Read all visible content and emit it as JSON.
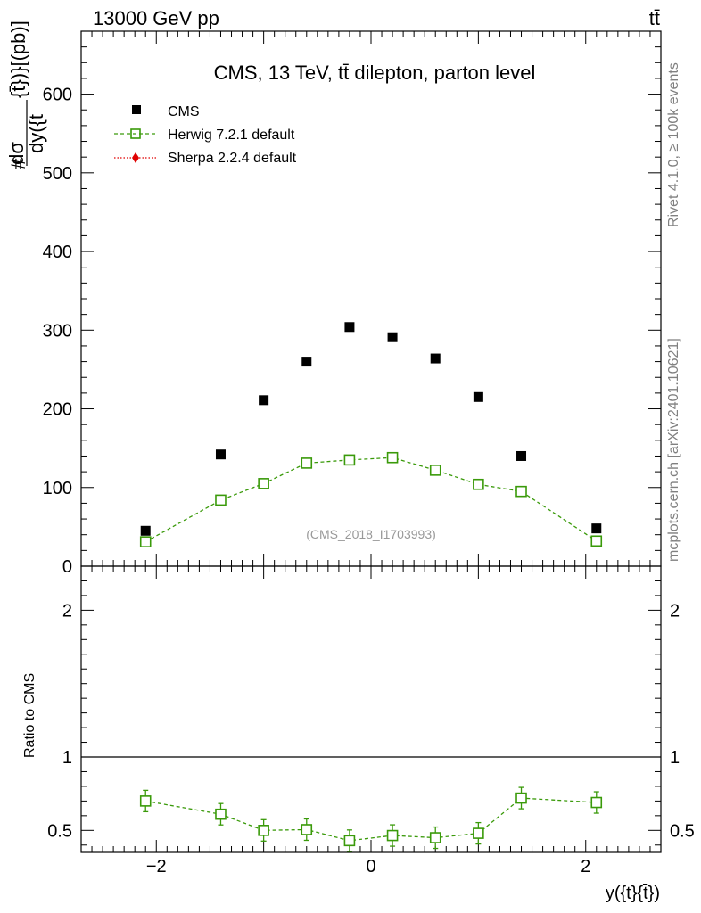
{
  "header": {
    "left": "13000 GeV pp",
    "right": "tt̄"
  },
  "plot_title": "CMS, 13 TeV, tt̄ dilepton, parton level",
  "analysis_label": "(CMS_2018_I1703993)",
  "side_labels": {
    "rivet": "Rivet 4.1.0, ≥ 100k events",
    "mcplots": "mcplots.cern.ch [arXiv:2401.10621]"
  },
  "main_ylabel": {
    "prefix": "#",
    "numerator": "dσ",
    "denominator": "dy({t",
    "suffix": "{t̄})}[(pb)]"
  },
  "legend": {
    "cms": "CMS",
    "herwig": "Herwig 7.2.1 default",
    "sherpa": "Sherpa 2.2.4 default"
  },
  "colors": {
    "cms": "#000000",
    "herwig": "#3a9a0a",
    "sherpa": "#e00000",
    "side_text": "#808080"
  },
  "chart_data": [
    {
      "type": "scatter",
      "title": "CMS, 13 TeV, tt̄ dilepton, parton level",
      "xlabel": "y({t}{t̄})",
      "ylabel": "dσ/dy({t}{t̄}) [pb]",
      "xlim": [
        -2.7,
        2.7
      ],
      "ylim": [
        0,
        680
      ],
      "x_ticks": [
        -2,
        0,
        2
      ],
      "y_ticks": [
        0,
        100,
        200,
        300,
        400,
        500,
        600
      ],
      "series": [
        {
          "name": "CMS",
          "x": [
            -2.1,
            -1.4,
            -1.0,
            -0.6,
            -0.2,
            0.2,
            0.6,
            1.0,
            1.4,
            2.1
          ],
          "values": [
            45,
            142,
            211,
            260,
            304,
            291,
            264,
            215,
            140,
            48
          ]
        },
        {
          "name": "Herwig 7.2.1 default",
          "x": [
            -2.1,
            -1.4,
            -1.0,
            -0.6,
            -0.2,
            0.2,
            0.6,
            1.0,
            1.4,
            2.1
          ],
          "values": [
            31,
            84,
            105,
            131,
            135,
            138,
            122,
            104,
            95,
            32
          ]
        },
        {
          "name": "Sherpa 2.2.4 default",
          "x": [],
          "values": []
        }
      ]
    },
    {
      "type": "scatter",
      "title": "",
      "xlabel": "y({t}{t̄})",
      "ylabel": "Ratio to CMS",
      "xlim": [
        -2.7,
        2.7
      ],
      "ylim": [
        0.35,
        2.3
      ],
      "x_ticks": [
        -2,
        0,
        2
      ],
      "y_ticks": [
        0.5,
        1,
        2
      ],
      "y_tick_labels": [
        "0.5",
        "1",
        "2"
      ],
      "series": [
        {
          "name": "Herwig 7.2.1 default",
          "x": [
            -2.1,
            -1.4,
            -1.0,
            -0.6,
            -0.2,
            0.2,
            0.6,
            1.0,
            1.4,
            2.1
          ],
          "values": [
            0.7,
            0.61,
            0.5,
            0.505,
            0.43,
            0.465,
            0.45,
            0.48,
            0.72,
            0.69
          ]
        }
      ]
    }
  ]
}
